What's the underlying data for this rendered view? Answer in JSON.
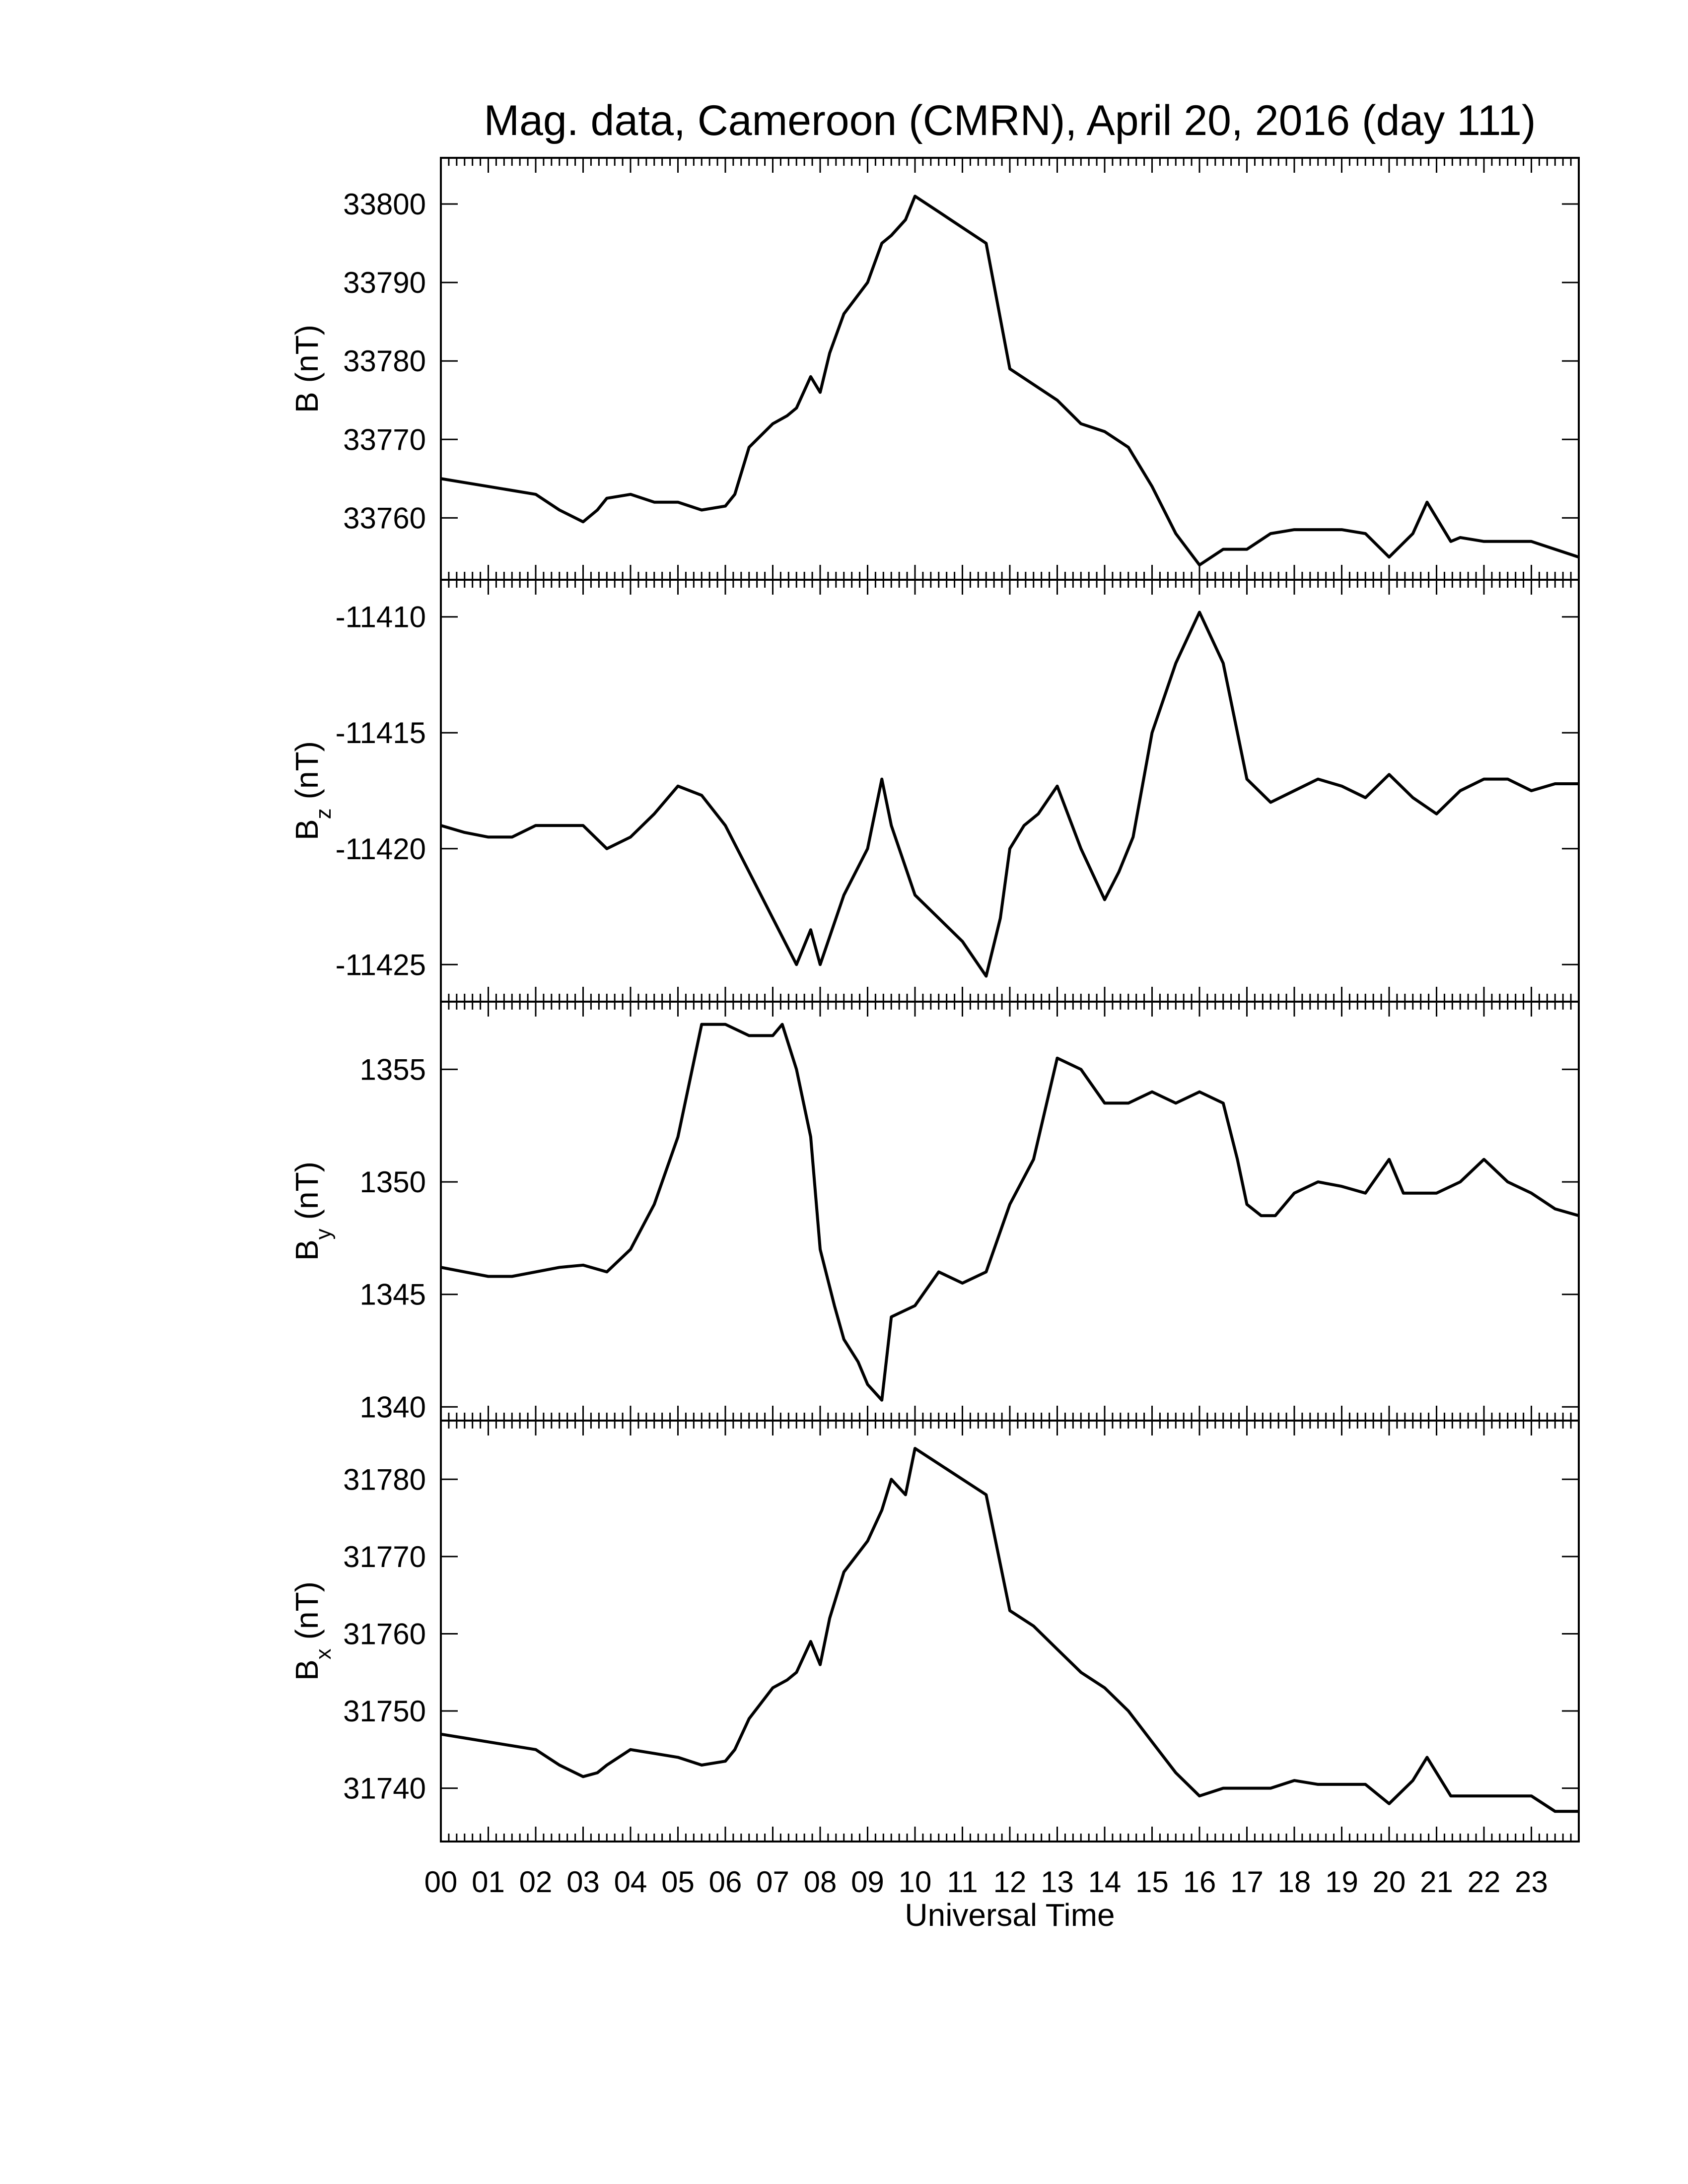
{
  "chart_data": {
    "type": "line",
    "title": "Mag. data, Cameroon (CMRN), April 20, 2016 (day 111)",
    "xlabel": "Universal Time",
    "x_tick_labels": [
      "00",
      "01",
      "02",
      "03",
      "04",
      "05",
      "06",
      "07",
      "08",
      "09",
      "10",
      "11",
      "12",
      "13",
      "14",
      "15",
      "16",
      "17",
      "18",
      "19",
      "20",
      "21",
      "22",
      "23"
    ],
    "xlim": [
      0,
      24
    ],
    "panels": [
      {
        "id": "B",
        "ylabel_main": "B",
        "ylabel_sub": "",
        "ylabel_unit": "(nT)",
        "ylim": [
          33753,
          33805
        ],
        "yticks": [
          33760,
          33770,
          33780,
          33790,
          33800
        ],
        "x": [
          0,
          0.5,
          1,
          1.5,
          2,
          2.5,
          3,
          3.3,
          3.5,
          4,
          4.5,
          5,
          5.5,
          6,
          6.2,
          6.5,
          7,
          7.3,
          7.5,
          7.8,
          8,
          8.2,
          8.5,
          9,
          9.3,
          9.5,
          9.8,
          10,
          10.5,
          11,
          11.5,
          12,
          12.5,
          13,
          13.5,
          14,
          14.5,
          15,
          15.5,
          16,
          16.5,
          17,
          17.5,
          18,
          18.5,
          19,
          19.5,
          20,
          20.5,
          20.8,
          21,
          21.3,
          21.5,
          22,
          22.5,
          23,
          23.5,
          24
        ],
        "values": [
          33765,
          33764.5,
          33764,
          33763.5,
          33763,
          33761,
          33759.5,
          33761,
          33762.5,
          33763,
          33762,
          33762,
          33761,
          33761.5,
          33763,
          33769,
          33772,
          33773,
          33774,
          33778,
          33776,
          33781,
          33786,
          33790,
          33795,
          33796,
          33798,
          33801,
          33799,
          33797,
          33795,
          33779,
          33777,
          33775,
          33772,
          33771,
          33769,
          33764,
          33758,
          33754,
          33756,
          33756,
          33758,
          33758.5,
          33758.5,
          33758.5,
          33758,
          33755,
          33758,
          33762,
          33760,
          33757,
          33757.5,
          33757,
          33757,
          33757,
          33756,
          33755
        ]
      },
      {
        "id": "Bz",
        "ylabel_main": "B",
        "ylabel_sub": "z",
        "ylabel_unit": "(nT)",
        "ylim": [
          -11426.3,
          -11408.7
        ],
        "yticks": [
          -11410,
          -11415,
          -11420,
          -11425
        ],
        "x": [
          0,
          0.5,
          1,
          1.5,
          2,
          2.5,
          3,
          3.5,
          4,
          4.5,
          5,
          5.5,
          6,
          6.5,
          7,
          7.5,
          7.8,
          8,
          8.5,
          9,
          9.3,
          9.5,
          10,
          10.5,
          11,
          11.5,
          11.8,
          12,
          12.3,
          12.6,
          13,
          13.5,
          14,
          14.3,
          14.6,
          15,
          15.5,
          16,
          16.5,
          17,
          17.5,
          18,
          18.5,
          19,
          19.5,
          20,
          20.5,
          21,
          21.5,
          22,
          22.5,
          23,
          23.5,
          24
        ],
        "values": [
          -11419,
          -11419.3,
          -11419.5,
          -11419.5,
          -11419,
          -11419,
          -11419,
          -11420,
          -11419.5,
          -11418.5,
          -11417.3,
          -11417.7,
          -11419,
          -11421,
          -11423,
          -11425,
          -11423.5,
          -11425,
          -11422,
          -11420,
          -11417,
          -11419,
          -11422,
          -11423,
          -11424,
          -11425.5,
          -11423,
          -11420,
          -11419,
          -11418.5,
          -11417.3,
          -11420,
          -11422.2,
          -11421,
          -11419.5,
          -11415,
          -11412,
          -11409.8,
          -11412,
          -11417,
          -11418,
          -11417.5,
          -11417,
          -11417.3,
          -11417.8,
          -11416.8,
          -11417.8,
          -11418.5,
          -11417.5,
          -11417,
          -11417,
          -11417.5,
          -11417.2,
          -11417.2
        ]
      },
      {
        "id": "By",
        "ylabel_main": "B",
        "ylabel_sub": "y",
        "ylabel_unit": "(nT)",
        "ylim": [
          1339.7,
          1357.7
        ],
        "yticks": [
          1340,
          1345,
          1350,
          1355
        ],
        "x": [
          0,
          0.5,
          1,
          1.5,
          2,
          2.5,
          3,
          3.5,
          4,
          4.5,
          5,
          5.3,
          5.5,
          6,
          6.5,
          7,
          7.2,
          7.5,
          7.8,
          8,
          8.3,
          8.5,
          8.8,
          9,
          9.3,
          9.5,
          10,
          10.5,
          11,
          11.5,
          12,
          12.5,
          13,
          13.5,
          14,
          14.5,
          15,
          15.5,
          16,
          16.5,
          16.8,
          17,
          17.3,
          17.6,
          18,
          18.5,
          19,
          19.5,
          20,
          20.3,
          20.5,
          21,
          21.5,
          22,
          22.5,
          23,
          23.5,
          24
        ],
        "values": [
          1346.2,
          1346,
          1345.8,
          1345.8,
          1346,
          1346.2,
          1346.3,
          1346,
          1347,
          1349,
          1352,
          1355,
          1357,
          1357,
          1356.5,
          1356.5,
          1357,
          1355,
          1352,
          1347,
          1344.5,
          1343,
          1342,
          1341,
          1340.3,
          1344,
          1344.5,
          1346,
          1345.5,
          1346,
          1349,
          1351,
          1355.5,
          1355,
          1353.5,
          1353.5,
          1354,
          1353.5,
          1354,
          1353.5,
          1351,
          1349,
          1348.5,
          1348.5,
          1349.5,
          1350,
          1349.8,
          1349.5,
          1351,
          1349.5,
          1349.5,
          1349.5,
          1350,
          1351,
          1350,
          1349.5,
          1348.8,
          1348.5
        ]
      },
      {
        "id": "Bx",
        "ylabel_main": "B",
        "ylabel_sub": "x",
        "ylabel_unit": "(nT)",
        "ylim": [
          31734,
          31786.7
        ],
        "yticks": [
          31740,
          31750,
          31760,
          31770,
          31780
        ],
        "x": [
          0,
          0.5,
          1,
          1.5,
          2,
          2.5,
          3,
          3.3,
          3.5,
          4,
          4.5,
          5,
          5.5,
          6,
          6.2,
          6.5,
          7,
          7.3,
          7.5,
          7.8,
          8,
          8.2,
          8.5,
          9,
          9.3,
          9.5,
          9.8,
          10,
          10.5,
          11,
          11.5,
          12,
          12.5,
          13,
          13.5,
          14,
          14.5,
          15,
          15.5,
          16,
          16.5,
          17,
          17.5,
          18,
          18.5,
          19,
          19.5,
          20,
          20.5,
          20.8,
          21,
          21.3,
          21.5,
          22,
          22.5,
          23,
          23.5,
          24
        ],
        "values": [
          31747,
          31746.5,
          31746,
          31745.5,
          31745,
          31743,
          31741.5,
          31742,
          31743,
          31745,
          31744.5,
          31744,
          31743,
          31743.5,
          31745,
          31749,
          31753,
          31754,
          31755,
          31759,
          31756,
          31762,
          31768,
          31772,
          31776,
          31780,
          31778,
          31784,
          31782,
          31780,
          31778,
          31763,
          31761,
          31758,
          31755,
          31753,
          31750,
          31746,
          31742,
          31739,
          31740,
          31740,
          31740,
          31741,
          31740.5,
          31740.5,
          31740.5,
          31738,
          31741,
          31744,
          31742,
          31739,
          31739,
          31739,
          31739,
          31739,
          31737,
          31737
        ]
      }
    ]
  }
}
